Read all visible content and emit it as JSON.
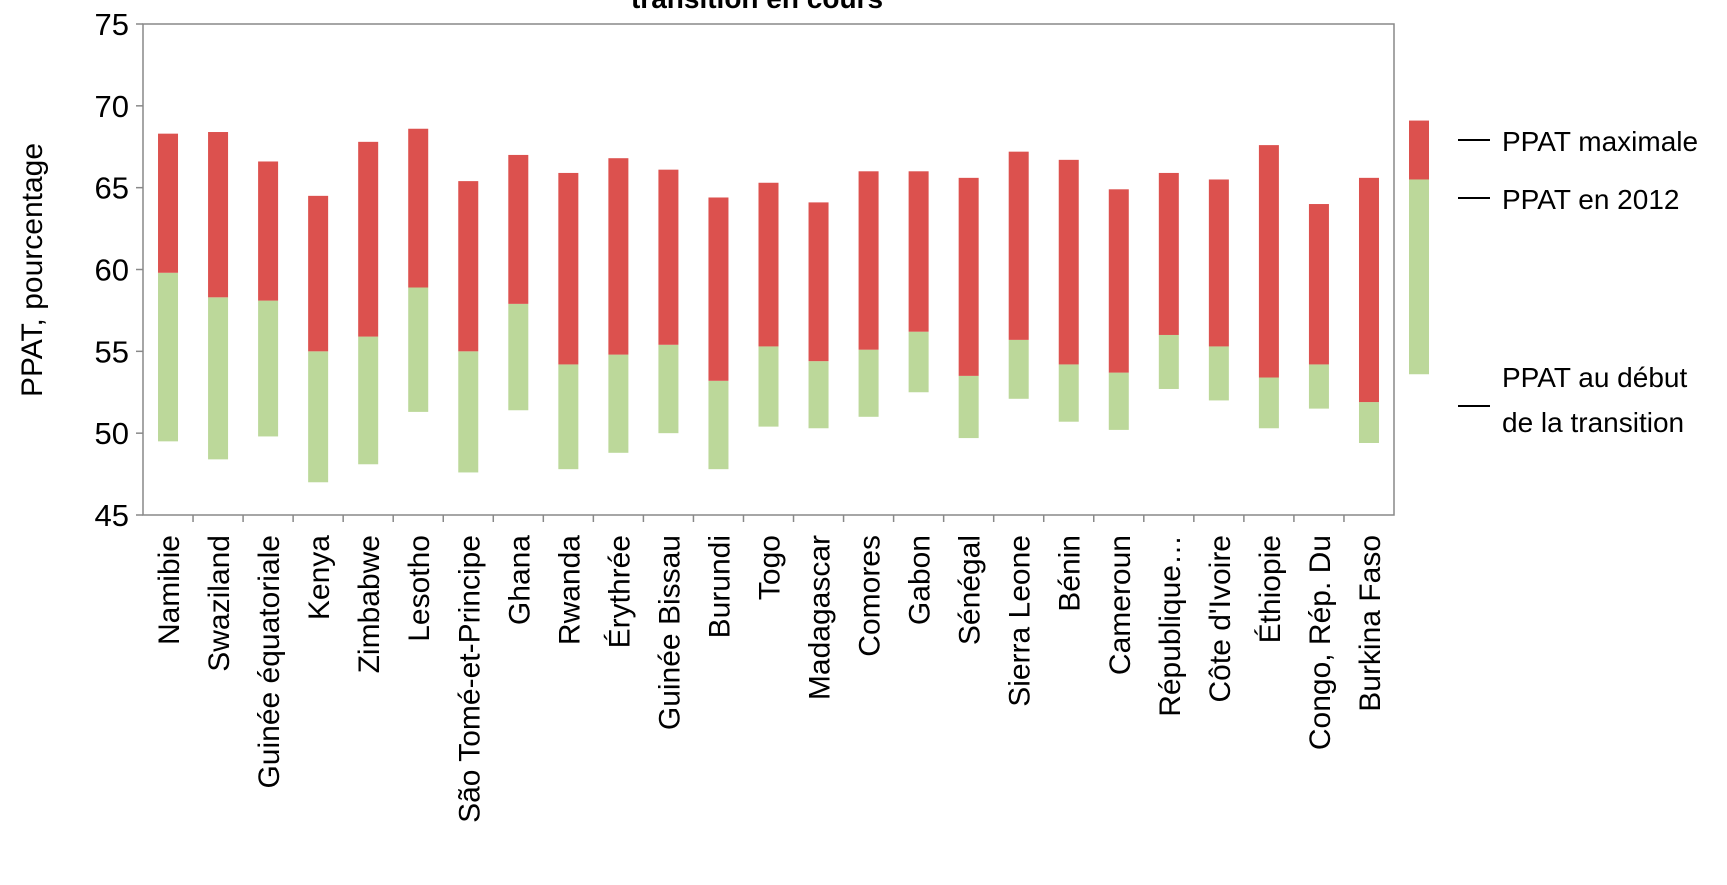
{
  "chart_data": {
    "type": "bar",
    "title": "transition en cours",
    "ylabel": "PPAT, pourcentage",
    "xlabel": "",
    "ylim": [
      45,
      75
    ],
    "yticks": [
      45,
      50,
      55,
      60,
      65,
      70,
      75
    ],
    "grid": false,
    "legend_position": "right",
    "categories": [
      "Namibie",
      "Swaziland",
      "Guinée équatoriale",
      "Kenya",
      "Zimbabwe",
      "Lesotho",
      "São Tomé-et-Principe",
      "Ghana",
      "Rwanda",
      "Érythrée",
      "Guinée Bissau",
      "Burundi",
      "Togo",
      "Madagascar",
      "Comores",
      "Gabon",
      "Sénégal",
      "Sierra Leone",
      "Bénin",
      "Cameroun",
      "République…",
      "Côte d'Ivoire",
      "Éthiopie",
      "Congo, Rép. Du",
      "Burkina Faso"
    ],
    "series": [
      {
        "name": "PPAT au début de la transition",
        "values": [
          49.5,
          48.4,
          49.8,
          47.0,
          48.1,
          51.3,
          47.6,
          51.4,
          47.8,
          48.8,
          50.0,
          47.8,
          50.4,
          50.3,
          51.0,
          52.5,
          49.7,
          52.1,
          50.7,
          50.2,
          52.7,
          52.0,
          50.3,
          51.5,
          49.4
        ],
        "color": "#bcd89a"
      },
      {
        "name": "PPAT en 2012",
        "values": [
          59.8,
          58.3,
          58.1,
          55.0,
          55.9,
          58.9,
          55.0,
          57.9,
          54.2,
          54.8,
          55.4,
          53.2,
          55.3,
          54.4,
          55.1,
          56.2,
          53.5,
          55.7,
          54.2,
          53.7,
          56.0,
          55.3,
          53.4,
          54.2,
          51.9
        ],
        "color": "#bcd89a"
      },
      {
        "name": "PPAT maximale",
        "values": [
          68.3,
          68.4,
          66.6,
          64.5,
          67.8,
          68.6,
          65.4,
          67.0,
          65.9,
          66.8,
          66.1,
          64.4,
          65.3,
          64.1,
          66.0,
          66.0,
          65.6,
          67.2,
          66.7,
          64.9,
          65.9,
          65.5,
          67.6,
          64.0,
          65.6
        ],
        "color": "#dc514e"
      }
    ],
    "legend": {
      "max_label": "PPAT maximale",
      "current_label": "PPAT en 2012",
      "start_label_line1": "PPAT au début",
      "start_label_line2": "de la transition",
      "sample": {
        "start": 53.6,
        "current": 65.5,
        "max": 69.1
      }
    }
  }
}
